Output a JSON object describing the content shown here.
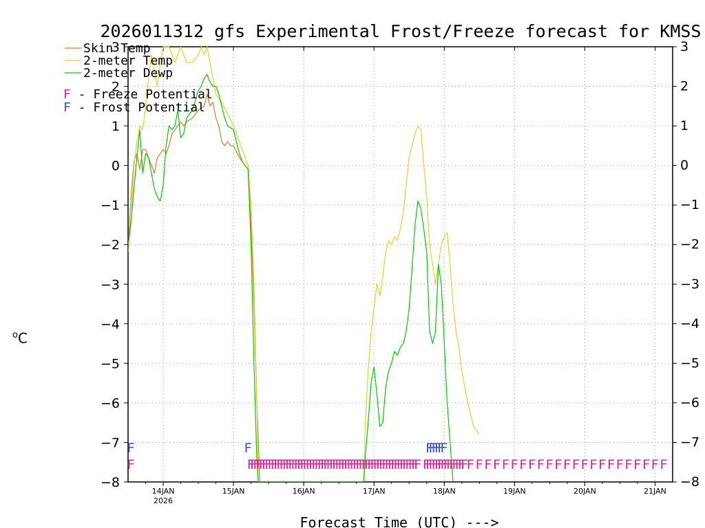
{
  "chart_data": {
    "type": "line",
    "title": "2026011312 gfs Experimental Frost/Freeze forecast for KMSS",
    "xlabel": "Forecast Time (UTC) --->",
    "ylabel": "°C",
    "ylabel_deg": "o",
    "ylabel_unit": "C",
    "ylim": [
      -8,
      3
    ],
    "xlim": [
      0,
      186
    ],
    "grid": true,
    "y_ticks": [
      {
        "v": 3,
        "label": "3"
      },
      {
        "v": 2,
        "label": "2"
      },
      {
        "v": 1,
        "label": "1"
      },
      {
        "v": 0,
        "label": "0"
      },
      {
        "v": -1,
        "label": "−1"
      },
      {
        "v": -2,
        "label": "−2"
      },
      {
        "v": -3,
        "label": "−3"
      },
      {
        "v": -4,
        "label": "−4"
      },
      {
        "v": -5,
        "label": "−5"
      },
      {
        "v": -6,
        "label": "−6"
      },
      {
        "v": -7,
        "label": "−7"
      },
      {
        "v": -8,
        "label": "−8"
      }
    ],
    "x_ticks": [
      {
        "h": 12,
        "label": "14JAN",
        "sub": "2026"
      },
      {
        "h": 36,
        "label": "15JAN",
        "sub": ""
      },
      {
        "h": 60,
        "label": "16JAN",
        "sub": ""
      },
      {
        "h": 84,
        "label": "17JAN",
        "sub": ""
      },
      {
        "h": 108,
        "label": "18JAN",
        "sub": ""
      },
      {
        "h": 132,
        "label": "19JAN",
        "sub": ""
      },
      {
        "h": 156,
        "label": "20JAN",
        "sub": ""
      },
      {
        "h": 180,
        "label": "21JAN",
        "sub": ""
      }
    ],
    "legend": [
      {
        "name": "Skin Temp",
        "color": "#e07830"
      },
      {
        "name": "2-meter Temp",
        "color": "#e8d020"
      },
      {
        "name": "2-meter Dewp",
        "color": "#00cc00"
      }
    ],
    "potential_legend": [
      {
        "letter": "F",
        "text": " - Freeze Potential",
        "color": "#e0209a"
      },
      {
        "letter": "F",
        "text": " - Frost Potential",
        "color": "#3050d0"
      }
    ],
    "marker_letter": "F",
    "series": [
      {
        "name": "Skin Temp",
        "color": "#e07830",
        "points": [
          [
            0,
            -2.2
          ],
          [
            1,
            -0.8
          ],
          [
            2,
            0.1
          ],
          [
            3,
            0.3
          ],
          [
            4,
            -0.1
          ],
          [
            5,
            0.4
          ],
          [
            6,
            0.4
          ],
          [
            8,
            0.0
          ],
          [
            9,
            -0.2
          ],
          [
            10,
            0.2
          ],
          [
            11,
            0.3
          ],
          [
            12,
            0.4
          ],
          [
            13,
            0.3
          ],
          [
            14,
            0.5
          ],
          [
            15,
            0.8
          ],
          [
            16,
            0.9
          ],
          [
            18,
            1.1
          ],
          [
            19,
            1.0
          ],
          [
            20,
            1.1
          ],
          [
            22,
            1.2
          ],
          [
            24,
            1.4
          ],
          [
            26,
            1.5
          ],
          [
            27,
            1.8
          ],
          [
            28,
            1.5
          ],
          [
            29,
            1.6
          ],
          [
            30,
            1.2
          ],
          [
            31,
            1.0
          ],
          [
            32,
            0.6
          ],
          [
            33,
            0.5
          ],
          [
            34,
            0.6
          ],
          [
            35,
            0.5
          ],
          [
            36,
            0.5
          ],
          [
            38,
            0.2
          ],
          [
            39,
            0.1
          ],
          [
            40,
            0.0
          ],
          [
            41,
            -0.1
          ],
          [
            42,
            -1.5
          ],
          [
            43,
            -3.5
          ],
          [
            44,
            -6.0
          ],
          [
            45,
            -8.0
          ]
        ]
      },
      {
        "name": "2-meter Temp",
        "color": "#e8d020",
        "points": [
          [
            0,
            -2.0
          ],
          [
            1,
            -1.5
          ],
          [
            2,
            0.0
          ],
          [
            3,
            0.6
          ],
          [
            4,
            1.0
          ],
          [
            5,
            0.9
          ],
          [
            6,
            1.5
          ],
          [
            7,
            2.2
          ],
          [
            8,
            2.8
          ],
          [
            9,
            2.4
          ],
          [
            10,
            2.0
          ],
          [
            11,
            2.6
          ],
          [
            12,
            3.0
          ],
          [
            13,
            3.0
          ],
          [
            14,
            3.0
          ],
          [
            15,
            2.8
          ],
          [
            16,
            2.6
          ],
          [
            17,
            2.8
          ],
          [
            18,
            3.0
          ],
          [
            19,
            2.8
          ],
          [
            20,
            2.6
          ],
          [
            22,
            2.6
          ],
          [
            24,
            2.8
          ],
          [
            25,
            3.0
          ],
          [
            26,
            2.8
          ],
          [
            27,
            3.0
          ],
          [
            28,
            2.6
          ],
          [
            29,
            2.2
          ],
          [
            30,
            1.8
          ],
          [
            32,
            1.6
          ],
          [
            34,
            1.3
          ],
          [
            36,
            1.0
          ],
          [
            38,
            0.6
          ],
          [
            40,
            0.2
          ],
          [
            41,
            0.0
          ],
          [
            42,
            -1.0
          ],
          [
            43,
            -3.0
          ],
          [
            44,
            -6.0
          ],
          [
            44.5,
            -8.0
          ],
          [
            80.5,
            -8.0
          ],
          [
            81,
            -6.5
          ],
          [
            82,
            -5.2
          ],
          [
            83,
            -4.2
          ],
          [
            84,
            -3.6
          ],
          [
            85,
            -3.0
          ],
          [
            86,
            -3.3
          ],
          [
            87,
            -2.8
          ],
          [
            88,
            -2.2
          ],
          [
            89,
            -1.9
          ],
          [
            90,
            -2.0
          ],
          [
            91,
            -1.8
          ],
          [
            92,
            -1.9
          ],
          [
            93,
            -1.6
          ],
          [
            94,
            -1.2
          ],
          [
            95,
            -0.5
          ],
          [
            96,
            0.2
          ],
          [
            97,
            0.5
          ],
          [
            98,
            0.8
          ],
          [
            99,
            1.0
          ],
          [
            100,
            0.9
          ],
          [
            101,
            0.0
          ],
          [
            102,
            -0.8
          ],
          [
            103,
            -2.0
          ],
          [
            104,
            -2.5
          ],
          [
            105,
            -3.0
          ],
          [
            106,
            -2.5
          ],
          [
            107,
            -2.0
          ],
          [
            108,
            -1.8
          ],
          [
            109,
            -1.7
          ],
          [
            110,
            -2.5
          ],
          [
            111,
            -3.5
          ],
          [
            112,
            -4.2
          ],
          [
            113,
            -4.6
          ],
          [
            114,
            -5.2
          ],
          [
            115,
            -5.6
          ],
          [
            116,
            -6.0
          ],
          [
            117,
            -6.3
          ],
          [
            118,
            -6.6
          ],
          [
            119,
            -6.7
          ],
          [
            120,
            -6.8
          ]
        ]
      },
      {
        "name": "2-meter Dewp",
        "color": "#00cc00",
        "points": [
          [
            0,
            -2.1
          ],
          [
            1,
            -1.4
          ],
          [
            2,
            -0.6
          ],
          [
            3,
            0.2
          ],
          [
            4,
            0.9
          ],
          [
            5,
            -0.2
          ],
          [
            6,
            0.3
          ],
          [
            7,
            0.2
          ],
          [
            8,
            -0.2
          ],
          [
            9,
            -0.6
          ],
          [
            10,
            -0.8
          ],
          [
            11,
            -0.9
          ],
          [
            12,
            -0.5
          ],
          [
            13,
            0.5
          ],
          [
            14,
            1.0
          ],
          [
            15,
            0.9
          ],
          [
            16,
            1.0
          ],
          [
            17,
            1.4
          ],
          [
            18,
            0.7
          ],
          [
            19,
            0.8
          ],
          [
            20,
            1.2
          ],
          [
            22,
            1.4
          ],
          [
            24,
            1.9
          ],
          [
            25,
            2.0
          ],
          [
            26,
            2.2
          ],
          [
            27,
            2.3
          ],
          [
            28,
            2.1
          ],
          [
            29,
            2.0
          ],
          [
            30,
            2.0
          ],
          [
            31,
            1.8
          ],
          [
            32,
            1.5
          ],
          [
            33,
            1.2
          ],
          [
            34,
            1.0
          ],
          [
            36,
            0.9
          ],
          [
            38,
            0.3
          ],
          [
            39,
            0.1
          ],
          [
            40,
            0.0
          ],
          [
            41,
            -0.1
          ],
          [
            42,
            -2.0
          ],
          [
            43,
            -5.0
          ],
          [
            44,
            -7.5
          ],
          [
            44.5,
            -8.0
          ],
          [
            80.5,
            -8.0
          ],
          [
            81,
            -7.4
          ],
          [
            82,
            -6.5
          ],
          [
            83,
            -5.5
          ],
          [
            84,
            -5.1
          ],
          [
            85,
            -5.8
          ],
          [
            86,
            -6.6
          ],
          [
            87,
            -6.5
          ],
          [
            88,
            -5.6
          ],
          [
            89,
            -5.2
          ],
          [
            90,
            -5.0
          ],
          [
            91,
            -4.7
          ],
          [
            92,
            -4.8
          ],
          [
            93,
            -4.6
          ],
          [
            94,
            -4.5
          ],
          [
            95,
            -4.2
          ],
          [
            96,
            -3.6
          ],
          [
            97,
            -2.6
          ],
          [
            98,
            -1.5
          ],
          [
            99,
            -0.9
          ],
          [
            100,
            -1.1
          ],
          [
            101,
            -1.6
          ],
          [
            102,
            -2.2
          ],
          [
            103,
            -4.2
          ],
          [
            104,
            -4.5
          ],
          [
            105,
            -4.2
          ],
          [
            106,
            -2.5
          ],
          [
            107,
            -3.0
          ],
          [
            108,
            -4.5
          ],
          [
            109,
            -6.0
          ],
          [
            110,
            -7.0
          ],
          [
            111,
            -8.0
          ]
        ]
      }
    ],
    "freeze_marks_h": [
      1,
      42,
      43,
      44,
      45,
      46,
      47,
      48,
      49,
      50,
      51,
      52,
      53,
      54,
      55,
      56,
      57,
      58,
      59,
      60,
      61,
      62,
      63,
      64,
      65,
      66,
      67,
      68,
      69,
      70,
      71,
      72,
      73,
      74,
      75,
      76,
      77,
      78,
      79,
      80,
      81,
      82,
      83,
      84,
      85,
      86,
      87,
      88,
      89,
      90,
      91,
      92,
      93,
      94,
      95,
      96,
      97,
      98,
      99,
      102,
      103,
      104,
      105,
      106,
      107,
      108,
      109,
      110,
      111,
      112,
      113,
      114,
      115,
      117,
      120,
      123,
      126,
      129,
      132,
      135,
      138,
      141,
      144,
      147,
      150,
      153,
      156,
      159,
      162,
      165,
      168,
      171,
      174,
      177,
      180,
      183
    ],
    "frost_marks_h": [
      1,
      41,
      103,
      104,
      105,
      106,
      107,
      108
    ]
  }
}
